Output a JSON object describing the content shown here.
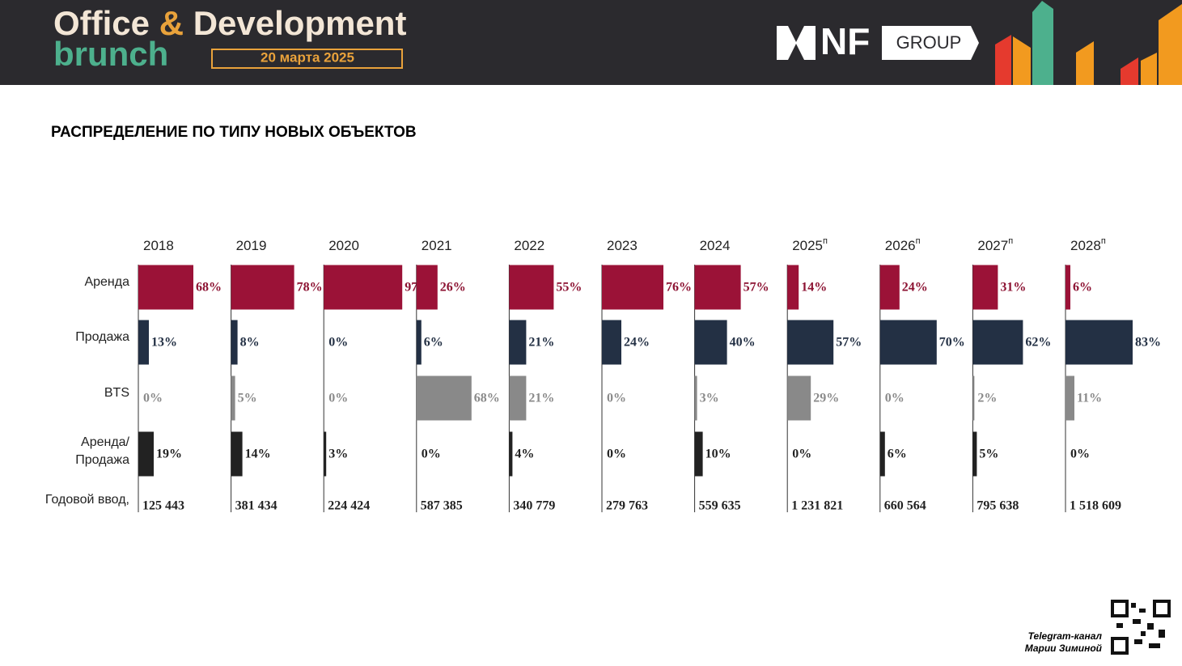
{
  "header": {
    "brand_line1_a": "Office",
    "brand_amp": "&",
    "brand_line1_b": "Development",
    "brand_line2": "brunch",
    "date": "20 марта 2025",
    "logo_a": "NF",
    "logo_b": "GROUP"
  },
  "chart_data": {
    "type": "bar",
    "orientation": "horizontal",
    "title": "РАСПРЕДЕЛЕНИЕ ПО ТИПУ НОВЫХ ОБЪЕКТОВ",
    "columns": [
      {
        "year": "2018"
      },
      {
        "year": "2019"
      },
      {
        "year": "2020"
      },
      {
        "year": "2021"
      },
      {
        "year": "2022"
      },
      {
        "year": "2023"
      },
      {
        "year": "2024"
      },
      {
        "year": "2025",
        "mark": "п"
      },
      {
        "year": "2026",
        "mark": "п"
      },
      {
        "year": "2027",
        "mark": "п"
      },
      {
        "year": "2028",
        "mark": "п"
      }
    ],
    "xlim": [
      0,
      100
    ],
    "series": [
      {
        "name": "Аренда",
        "color": "#9b1237",
        "label_color": "#8c1232",
        "values": [
          68,
          78,
          97,
          26,
          55,
          76,
          57,
          14,
          24,
          31,
          6
        ],
        "value_labels": [
          "68%",
          "78%",
          "97%",
          "26%",
          "55%",
          "76%",
          "57%",
          "14%",
          "24%",
          "31%",
          "6%"
        ]
      },
      {
        "name": "Продажа",
        "color": "#233044",
        "label_color": "#233044",
        "values": [
          13,
          8,
          0,
          6,
          21,
          24,
          40,
          57,
          70,
          62,
          83
        ],
        "value_labels": [
          "13%",
          "8%",
          "0%",
          "6%",
          "21%",
          "24%",
          "40%",
          "57%",
          "70%",
          "62%",
          "83%"
        ]
      },
      {
        "name": "BTS",
        "color": "#898989",
        "label_color": "#8a8a8a",
        "values": [
          0,
          5,
          0,
          68,
          21,
          0,
          3,
          29,
          0,
          2,
          11
        ],
        "value_labels": [
          "0%",
          "5%",
          "0%",
          "68%",
          "21%",
          "0%",
          "3%",
          "29%",
          "0%",
          "2%",
          "11%"
        ]
      },
      {
        "name": "Аренда/ Продажа",
        "color": "#222222",
        "label_color": "#222222",
        "values": [
          19,
          14,
          3,
          0,
          4,
          0,
          10,
          0,
          6,
          5,
          0
        ],
        "value_labels": [
          "19%",
          "14%",
          "3%",
          "0%",
          "4%",
          "0%",
          "10%",
          "0%",
          "6%",
          "5%",
          "0%"
        ]
      }
    ],
    "totals": {
      "label": "Годовой ввод,",
      "values": [
        125443,
        381434,
        224424,
        587385,
        340779,
        279763,
        559635,
        1231821,
        660564,
        795638,
        1518609
      ],
      "value_labels": [
        "125 443",
        "381 434",
        "224 424",
        "587 385",
        "340 779",
        "279 763",
        "559 635",
        "1 231 821",
        "660 564",
        "795 638",
        "1 518 609"
      ]
    }
  },
  "footer": {
    "line1": "Telegram-канал",
    "line2": "Марии Зиминой"
  }
}
